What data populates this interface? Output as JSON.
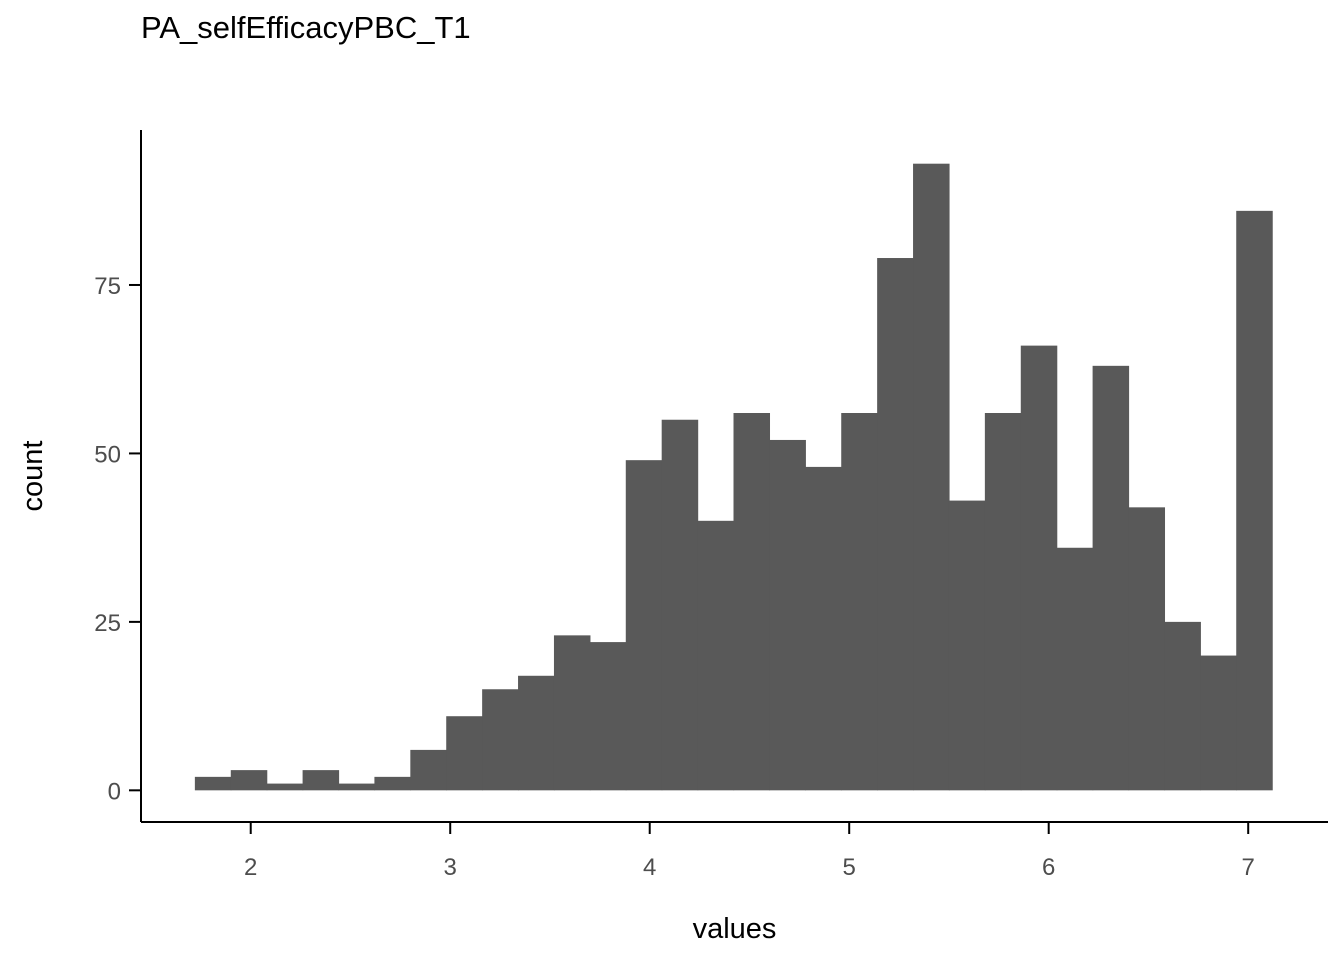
{
  "chart_data": {
    "type": "bar",
    "title": "PA_selfEfficacyPBC_T1",
    "xlabel": "values",
    "ylabel": "count",
    "bar_color": "#595959",
    "axis_color": "#000000",
    "tick_label_color": "#4d4d4d",
    "grid": false,
    "bin_width": 0.18,
    "bins": [
      {
        "x0": 1.72,
        "count": 2
      },
      {
        "x0": 1.9,
        "count": 3
      },
      {
        "x0": 2.08,
        "count": 1
      },
      {
        "x0": 2.26,
        "count": 3
      },
      {
        "x0": 2.44,
        "count": 1
      },
      {
        "x0": 2.62,
        "count": 2
      },
      {
        "x0": 2.8,
        "count": 6
      },
      {
        "x0": 2.98,
        "count": 11
      },
      {
        "x0": 3.16,
        "count": 15
      },
      {
        "x0": 3.34,
        "count": 17
      },
      {
        "x0": 3.52,
        "count": 23
      },
      {
        "x0": 3.7,
        "count": 22
      },
      {
        "x0": 3.88,
        "count": 49
      },
      {
        "x0": 4.06,
        "count": 55
      },
      {
        "x0": 4.24,
        "count": 40
      },
      {
        "x0": 4.42,
        "count": 56
      },
      {
        "x0": 4.6,
        "count": 52
      },
      {
        "x0": 4.78,
        "count": 48
      },
      {
        "x0": 4.96,
        "count": 56
      },
      {
        "x0": 5.14,
        "count": 79
      },
      {
        "x0": 5.32,
        "count": 93
      },
      {
        "x0": 5.5,
        "count": 43
      },
      {
        "x0": 5.68,
        "count": 56
      },
      {
        "x0": 5.86,
        "count": 66
      },
      {
        "x0": 6.04,
        "count": 36
      },
      {
        "x0": 6.22,
        "count": 63
      },
      {
        "x0": 6.4,
        "count": 42
      },
      {
        "x0": 6.58,
        "count": 25
      },
      {
        "x0": 6.76,
        "count": 20
      },
      {
        "x0": 6.94,
        "count": 86
      }
    ],
    "x_ticks": [
      2,
      3,
      4,
      5,
      6,
      7
    ],
    "y_ticks": [
      0,
      25,
      50,
      75
    ],
    "xlim": [
      1.45,
      7.4
    ],
    "ylim": [
      -4.7,
      98
    ]
  }
}
